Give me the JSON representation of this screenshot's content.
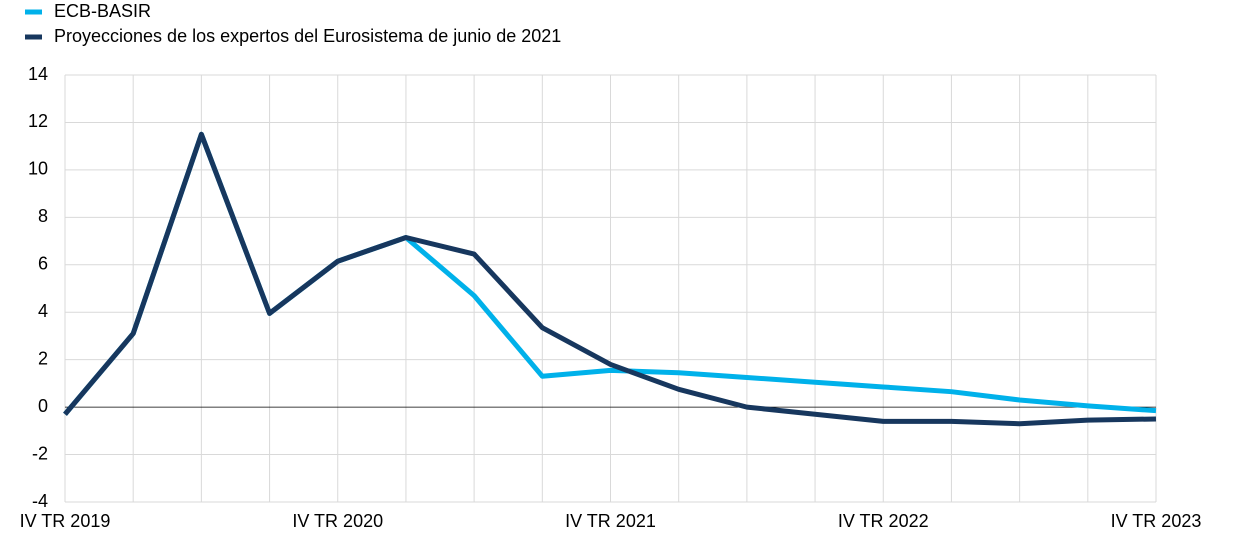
{
  "chart_data": {
    "type": "line",
    "categories": [
      "IV TR 2019",
      null,
      null,
      null,
      "IV TR 2020",
      null,
      null,
      null,
      "IV TR 2021",
      null,
      null,
      null,
      "IV TR 2022",
      null,
      null,
      null,
      "IV TR 2023"
    ],
    "series": [
      {
        "name": "ECB-BASIR",
        "color": "#00b1ea",
        "values": [
          -0.3,
          3.1,
          11.5,
          3.95,
          6.15,
          7.15,
          4.7,
          1.3,
          1.55,
          1.45,
          1.25,
          1.05,
          0.85,
          0.65,
          0.3,
          0.05,
          -0.15
        ]
      },
      {
        "name": "Proyecciones de los expertos del Eurosistema de junio de 2021",
        "color": "#17375e",
        "values": [
          -0.3,
          3.1,
          11.5,
          3.95,
          6.15,
          7.15,
          6.45,
          3.35,
          1.8,
          0.75,
          0.0,
          -0.3,
          -0.6,
          -0.6,
          -0.7,
          -0.55,
          -0.5
        ]
      }
    ],
    "ylim": [
      -4,
      14
    ],
    "yticks": [
      -4,
      -2,
      0,
      2,
      4,
      6,
      8,
      10,
      12,
      14
    ],
    "grid": true
  }
}
